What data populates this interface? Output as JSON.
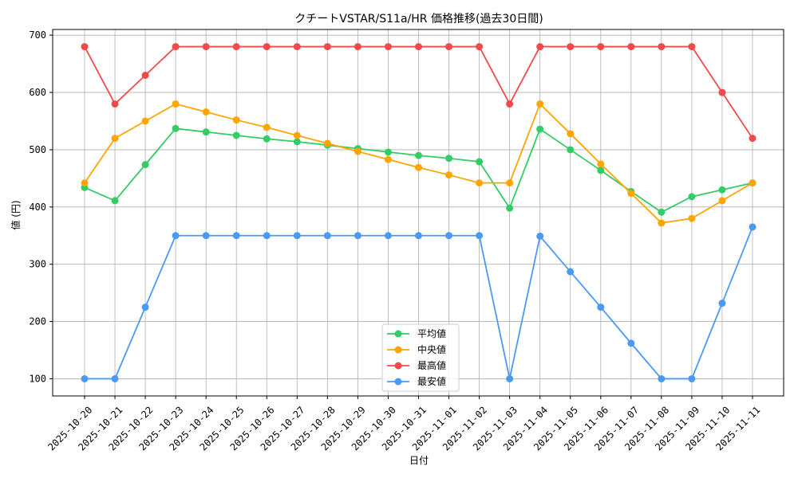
{
  "chart_data": {
    "type": "line",
    "title": "クチートVSTAR/S11a/HR 価格推移(過去30日間)",
    "xlabel": "日付",
    "ylabel": "値 (円)",
    "ylim": [
      70,
      710
    ],
    "yticks": [
      100,
      200,
      300,
      400,
      500,
      600,
      700
    ],
    "grid": true,
    "legend_position": "lower-center",
    "categories": [
      "2025-10-20",
      "2025-10-21",
      "2025-10-22",
      "2025-10-23",
      "2025-10-24",
      "2025-10-25",
      "2025-10-26",
      "2025-10-27",
      "2025-10-28",
      "2025-10-29",
      "2025-10-30",
      "2025-10-31",
      "2025-11-01",
      "2025-11-02",
      "2025-11-03",
      "2025-11-04",
      "2025-11-05",
      "2025-11-06",
      "2025-11-07",
      "2025-11-08",
      "2025-11-09",
      "2025-11-10",
      "2025-11-11"
    ],
    "series": [
      {
        "name": "平均値",
        "color": "#33cc66",
        "values": [
          434,
          411,
          474,
          537,
          531,
          525,
          519,
          514,
          508,
          502,
          496,
          490,
          485,
          479,
          398,
          536,
          500,
          464,
          427,
          391,
          418,
          430,
          442
        ]
      },
      {
        "name": "中央値",
        "color": "#ffa500",
        "values": [
          442,
          520,
          550,
          580,
          566,
          552,
          539,
          525,
          511,
          497,
          483,
          469,
          456,
          442,
          442,
          580,
          528,
          475,
          424,
          372,
          380,
          411,
          442
        ]
      },
      {
        "name": "最高値",
        "color": "#f04a4a",
        "values": [
          680,
          580,
          630,
          680,
          680,
          680,
          680,
          680,
          680,
          680,
          680,
          680,
          680,
          680,
          580,
          680,
          680,
          680,
          680,
          680,
          680,
          600,
          520
        ]
      },
      {
        "name": "最安値",
        "color": "#4a99f5",
        "values": [
          100,
          100,
          225,
          350,
          350,
          350,
          350,
          350,
          350,
          350,
          350,
          350,
          350,
          350,
          100,
          349,
          287,
          225,
          162,
          100,
          100,
          232,
          365
        ]
      }
    ]
  }
}
